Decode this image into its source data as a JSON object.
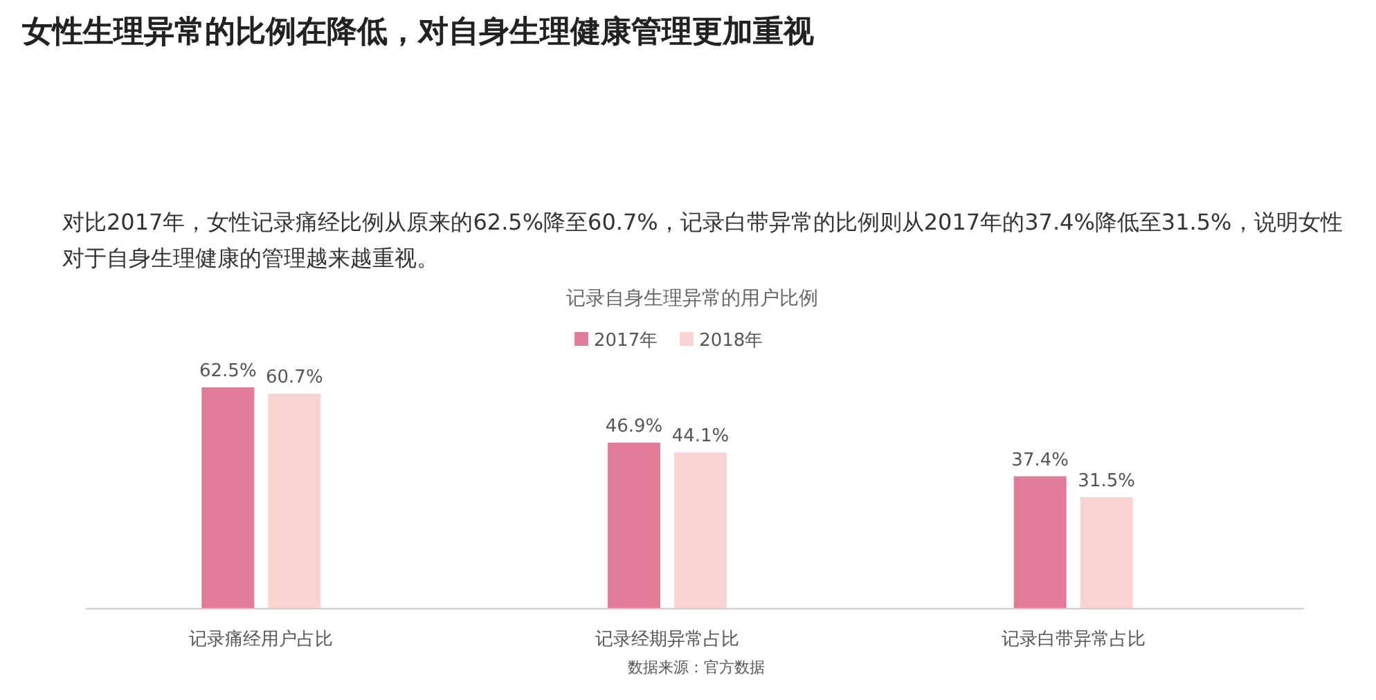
{
  "chart_data": {
    "type": "bar",
    "title": "女性生理异常的比例在降低，对自身生理健康管理更加重视",
    "subtitle": "对比2017年，女性记录痛经比例从原来的62.5%降至60.7%，记录白带异常的比例则从2017年的37.4%降低至31.5%，说明女性对于自身生理健康的管理越来越重视。",
    "annotations": [
      "记录自身生理异常的用户比例",
      "数据来源：官方数据"
    ],
    "categories": [
      "记录痛经用户占比",
      "记录经期异常占比",
      "记录白带异常占比"
    ],
    "series": [
      {
        "name": "2017年",
        "color": "#e07b98",
        "values": [
          62.5,
          46.9,
          37.4
        ],
        "value_labels": [
          "62.5%",
          "46.9%",
          "37.4%"
        ]
      },
      {
        "name": "2018年",
        "color": "#f8d3cf",
        "values": [
          60.7,
          44.1,
          31.5
        ],
        "value_labels": [
          "60.7%",
          "44.1%",
          "31.5%"
        ]
      }
    ],
    "legend": "top",
    "grid": false
  }
}
